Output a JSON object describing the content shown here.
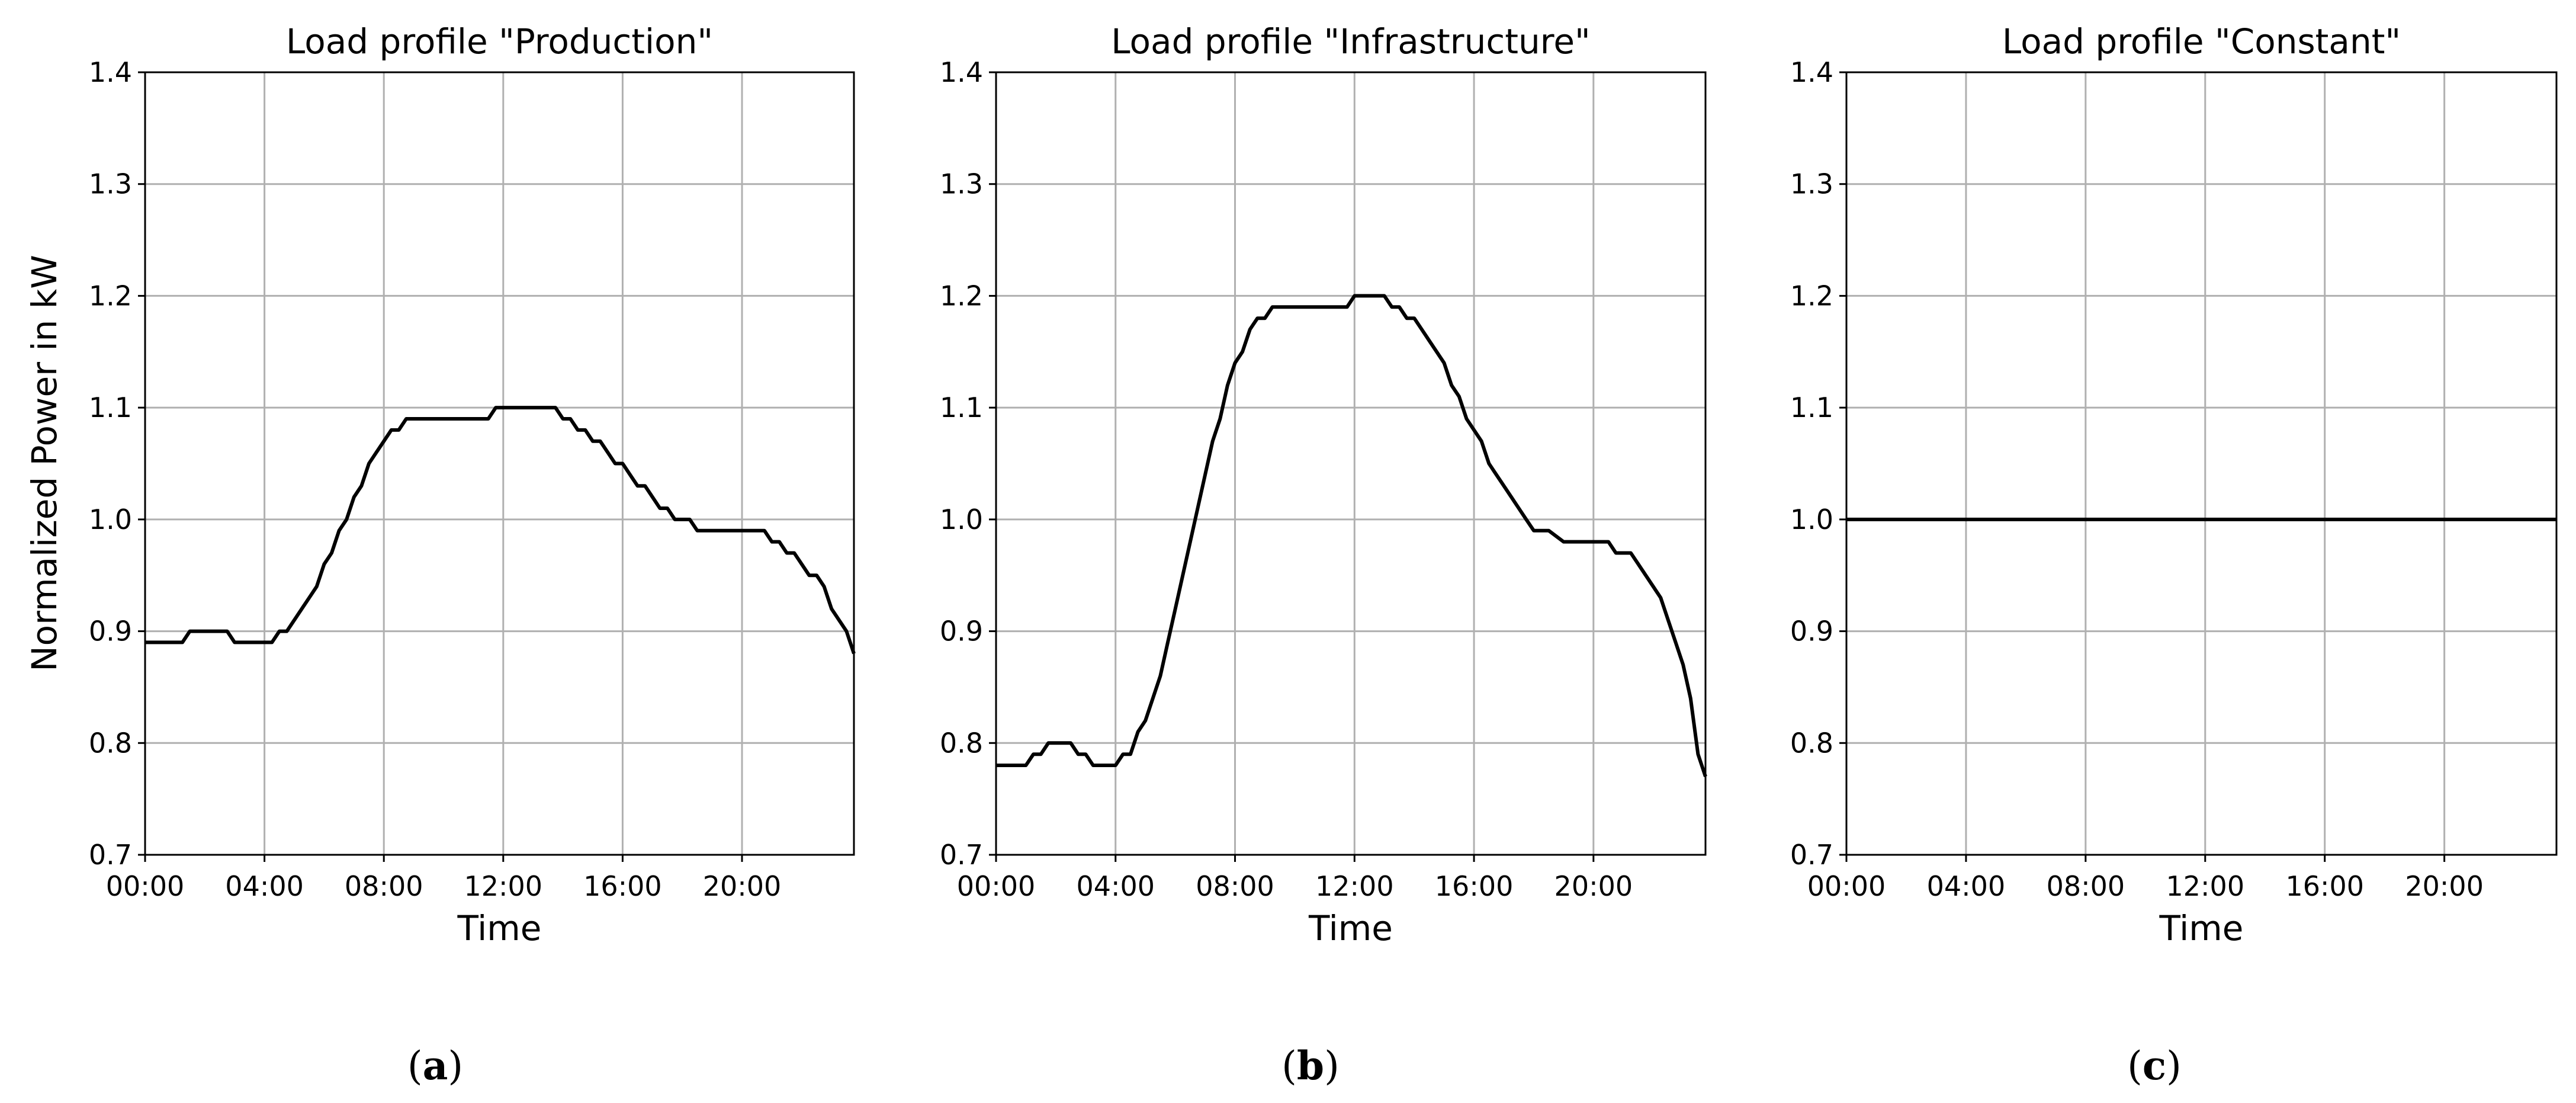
{
  "chart_data": [
    {
      "type": "line",
      "title": "Load profile \"Production\"",
      "xlabel": "Time",
      "ylabel": "Normalized Power in kW",
      "caption": "a",
      "ylim": [
        0.7,
        1.4
      ],
      "xlim": [
        "00:00",
        "23:45"
      ],
      "x_ticks": [
        "00:00",
        "04:00",
        "08:00",
        "12:00",
        "16:00",
        "20:00"
      ],
      "y_ticks": [
        "0.7",
        "0.8",
        "0.9",
        "1.0",
        "1.1",
        "1.2",
        "1.3",
        "1.4"
      ],
      "grid": true,
      "series": [
        {
          "color": "#000000",
          "x": [
            "00:00",
            "01:15",
            "01:30",
            "02:45",
            "03:00",
            "04:15",
            "04:30",
            "04:45",
            "05:15",
            "05:30",
            "05:45",
            "06:00",
            "06:15",
            "06:30",
            "06:45",
            "07:00",
            "07:15",
            "07:30",
            "07:45",
            "08:00",
            "08:15",
            "08:30",
            "08:45",
            "11:30",
            "11:45",
            "13:45",
            "14:00",
            "14:15",
            "14:30",
            "14:45",
            "15:00",
            "15:15",
            "15:30",
            "15:45",
            "16:00",
            "16:15",
            "16:30",
            "16:45",
            "17:00",
            "17:15",
            "17:30",
            "17:45",
            "18:00",
            "18:15",
            "18:30",
            "20:45",
            "21:00",
            "21:15",
            "21:30",
            "21:45",
            "22:00",
            "22:15",
            "22:30",
            "22:45",
            "23:00",
            "23:30",
            "23:45"
          ],
          "y": [
            0.89,
            0.89,
            0.9,
            0.9,
            0.89,
            0.89,
            0.9,
            0.9,
            0.92,
            0.93,
            0.94,
            0.96,
            0.97,
            0.99,
            1.0,
            1.02,
            1.03,
            1.05,
            1.06,
            1.07,
            1.08,
            1.08,
            1.09,
            1.09,
            1.1,
            1.1,
            1.09,
            1.09,
            1.08,
            1.08,
            1.07,
            1.07,
            1.06,
            1.05,
            1.05,
            1.04,
            1.03,
            1.03,
            1.02,
            1.01,
            1.01,
            1.0,
            1.0,
            1.0,
            0.99,
            0.99,
            0.98,
            0.98,
            0.97,
            0.97,
            0.96,
            0.95,
            0.95,
            0.94,
            0.92,
            0.9,
            0.88
          ]
        }
      ]
    },
    {
      "type": "line",
      "title": "Load profile \"Infrastructure\"",
      "xlabel": "Time",
      "caption": "b",
      "ylim": [
        0.7,
        1.4
      ],
      "xlim": [
        "00:00",
        "23:45"
      ],
      "x_ticks": [
        "00:00",
        "04:00",
        "08:00",
        "12:00",
        "16:00",
        "20:00"
      ],
      "y_ticks": [
        "0.7",
        "0.8",
        "0.9",
        "1.0",
        "1.1",
        "1.2",
        "1.3",
        "1.4"
      ],
      "grid": true,
      "series": [
        {
          "color": "#000000",
          "x": [
            "00:00",
            "01:00",
            "01:15",
            "01:30",
            "01:45",
            "02:30",
            "02:45",
            "03:00",
            "03:15",
            "04:00",
            "04:15",
            "04:30",
            "04:45",
            "05:00",
            "05:15",
            "05:30",
            "05:45",
            "06:00",
            "06:15",
            "06:30",
            "06:45",
            "07:00",
            "07:15",
            "07:30",
            "07:45",
            "08:00",
            "08:15",
            "08:30",
            "08:45",
            "09:00",
            "09:15",
            "09:30",
            "11:45",
            "12:00",
            "13:00",
            "13:15",
            "13:30",
            "13:45",
            "14:00",
            "14:15",
            "14:30",
            "14:45",
            "15:00",
            "15:15",
            "15:30",
            "15:45",
            "16:00",
            "16:15",
            "16:30",
            "16:45",
            "17:00",
            "17:15",
            "17:30",
            "17:45",
            "18:00",
            "18:15",
            "18:30",
            "19:00",
            "19:15",
            "20:30",
            "20:45",
            "21:15",
            "21:30",
            "21:45",
            "22:00",
            "22:15",
            "22:30",
            "22:45",
            "23:00",
            "23:15",
            "23:30",
            "23:45"
          ],
          "y": [
            0.78,
            0.78,
            0.79,
            0.79,
            0.8,
            0.8,
            0.79,
            0.79,
            0.78,
            0.78,
            0.79,
            0.79,
            0.81,
            0.82,
            0.84,
            0.86,
            0.89,
            0.92,
            0.95,
            0.98,
            1.01,
            1.04,
            1.07,
            1.09,
            1.12,
            1.14,
            1.15,
            1.17,
            1.18,
            1.18,
            1.19,
            1.19,
            1.19,
            1.2,
            1.2,
            1.19,
            1.19,
            1.18,
            1.18,
            1.17,
            1.16,
            1.15,
            1.14,
            1.12,
            1.11,
            1.09,
            1.08,
            1.07,
            1.05,
            1.04,
            1.03,
            1.02,
            1.01,
            1.0,
            0.99,
            0.99,
            0.99,
            0.98,
            0.98,
            0.98,
            0.97,
            0.97,
            0.96,
            0.95,
            0.94,
            0.93,
            0.91,
            0.89,
            0.87,
            0.84,
            0.79,
            0.77
          ]
        }
      ]
    },
    {
      "type": "line",
      "title": "Load profile \"Constant\"",
      "xlabel": "Time",
      "caption": "c",
      "ylim": [
        0.7,
        1.4
      ],
      "xlim": [
        "00:00",
        "23:45"
      ],
      "x_ticks": [
        "00:00",
        "04:00",
        "08:00",
        "12:00",
        "16:00",
        "20:00"
      ],
      "y_ticks": [
        "0.7",
        "0.8",
        "0.9",
        "1.0",
        "1.1",
        "1.2",
        "1.3",
        "1.4"
      ],
      "grid": true,
      "series": [
        {
          "color": "#000000",
          "x": [
            "00:00",
            "23:45"
          ],
          "y": [
            1.0,
            1.0
          ]
        }
      ]
    }
  ]
}
